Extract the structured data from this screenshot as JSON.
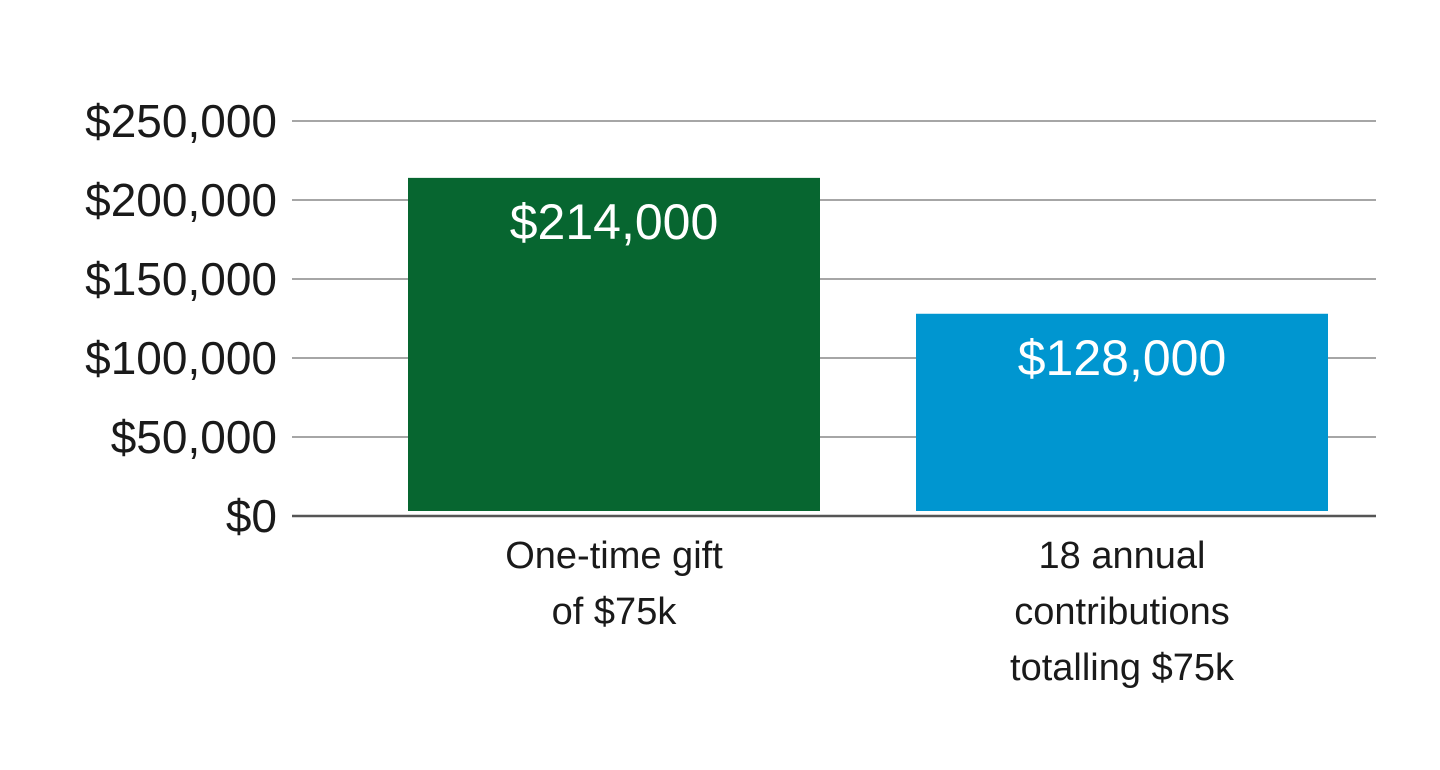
{
  "chart_data": {
    "type": "bar",
    "title": "",
    "xlabel": "",
    "ylabel": "",
    "ylim": [
      0,
      250000
    ],
    "yticks": [
      0,
      50000,
      100000,
      150000,
      200000,
      250000
    ],
    "ytick_labels": [
      "$0",
      "$50,000",
      "$100,000",
      "$150,000",
      "$200,000",
      "$250,000"
    ],
    "grid": true,
    "categories": [
      [
        "One-time gift",
        "of $75k"
      ],
      [
        "18 annual",
        "contributions",
        "totalling $75k"
      ]
    ],
    "values": [
      214000,
      128000
    ],
    "value_labels": [
      "$214,000",
      "$128,000"
    ],
    "colors": [
      "#076630",
      "#0096d0"
    ]
  }
}
